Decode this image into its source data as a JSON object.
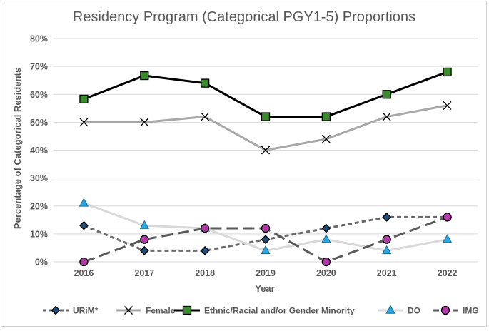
{
  "chart_data": {
    "type": "line",
    "title": "Residency Program (Categorical PGY1-5) Proportions",
    "xlabel": "Year",
    "ylabel": "Percentage of Categorical Residents",
    "ylim": [
      0,
      80
    ],
    "ytick_step": 10,
    "ytick_suffix": "%",
    "categories": [
      "2016",
      "2017",
      "2018",
      "2019",
      "2020",
      "2021",
      "2022"
    ],
    "grid": true,
    "legend_position": "bottom",
    "series": [
      {
        "name": "URiM*",
        "values": [
          13,
          4,
          4,
          8,
          12,
          16,
          16
        ],
        "color": "#6a6a6a",
        "marker_fill": "#1f4e79",
        "marker": "diamond",
        "dash": "dotted"
      },
      {
        "name": "Female",
        "values": [
          50,
          50,
          52,
          40,
          44,
          52,
          56
        ],
        "color": "#a8a8a8",
        "marker_fill": "none",
        "marker_stroke": "#000000",
        "marker": "x",
        "dash": "solid"
      },
      {
        "name": "Ethnic/Racial and/or Gender Minority",
        "values": [
          58.3,
          66.7,
          64,
          52,
          52,
          60,
          68
        ],
        "color": "#000000",
        "marker_fill": "#3c8a2e",
        "marker": "square",
        "dash": "solid"
      },
      {
        "name": "DO",
        "values": [
          21,
          13,
          12,
          4,
          8,
          4,
          8
        ],
        "color": "#d9d9d9",
        "marker_fill": "#29a8e0",
        "marker": "triangle",
        "dash": "solid"
      },
      {
        "name": "IMG",
        "values": [
          0,
          8,
          12,
          12,
          0,
          8,
          16
        ],
        "color": "#5a5a5a",
        "marker_fill": "#b23aa6",
        "marker": "circle",
        "dash": "longdash"
      }
    ]
  }
}
